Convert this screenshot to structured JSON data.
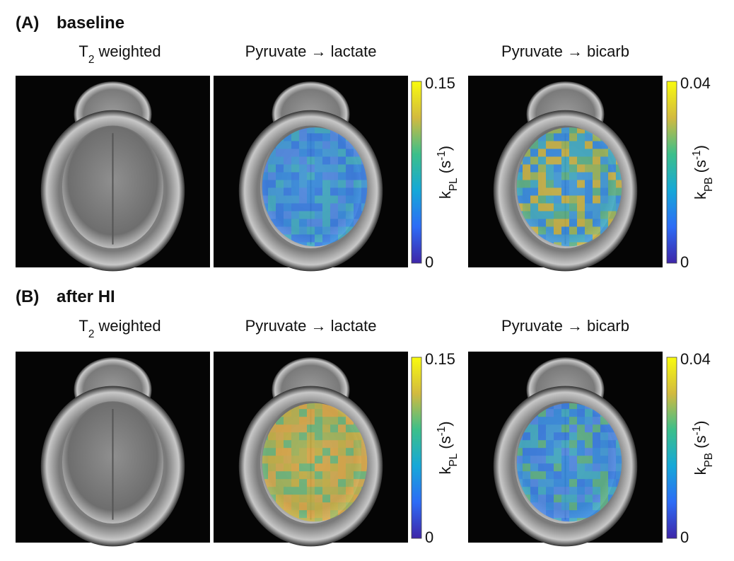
{
  "panels": [
    {
      "label": "(A)",
      "title": "baseline",
      "columns": [
        {
          "title": {
            "main": "T",
            "sub": "2",
            "rest": " weighted"
          }
        },
        {
          "title": "Pyruvate → lactate",
          "colorbar": {
            "max": 0.15,
            "min": 0,
            "label": {
              "main": "k",
              "sub": "PL",
              "open": " (s",
              "sup": "-1",
              "close": ")"
            }
          }
        },
        {
          "title": "Pyruvate → bicarb",
          "colorbar": {
            "max": 0.04,
            "min": 0,
            "label": {
              "main": "k",
              "sub": "PB",
              "open": " (s",
              "sup": "-1",
              "close": ")"
            }
          }
        }
      ]
    },
    {
      "label": "(B)",
      "title": "after HI",
      "columns": [
        {
          "title": {
            "main": "T",
            "sub": "2",
            "rest": " weighted"
          }
        },
        {
          "title": "Pyruvate → lactate",
          "colorbar": {
            "max": 0.15,
            "min": 0,
            "label": {
              "main": "k",
              "sub": "PL",
              "open": " (s",
              "sup": "-1",
              "close": ")"
            }
          }
        },
        {
          "title": "Pyruvate → bicarb",
          "colorbar": {
            "max": 0.04,
            "min": 0,
            "label": {
              "main": "k",
              "sub": "PB",
              "open": " (s",
              "sup": "-1",
              "close": ")"
            }
          }
        }
      ]
    }
  ]
}
